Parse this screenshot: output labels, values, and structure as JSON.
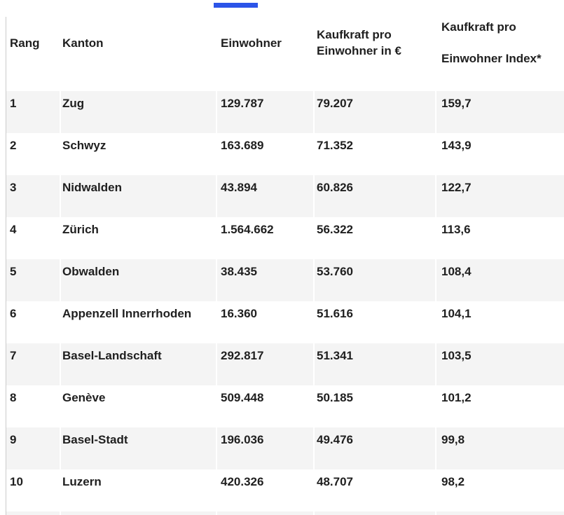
{
  "indicator": {
    "color": "#2c54e8"
  },
  "table": {
    "columns": [
      {
        "label": "Rang"
      },
      {
        "label": "Kanton"
      },
      {
        "label": "Einwohner"
      },
      {
        "label_line1": "Kaufkraft pro",
        "label_line2": "Einwohner in €"
      },
      {
        "label_line1": "Kaufkraft pro",
        "label_line2": "Einwohner Index*"
      }
    ],
    "rows": [
      [
        "1",
        "Zug",
        "129.787",
        "79.207",
        "159,7"
      ],
      [
        "2",
        "Schwyz",
        "163.689",
        "71.352",
        "143,9"
      ],
      [
        "3",
        "Nidwalden",
        "43.894",
        "60.826",
        "122,7"
      ],
      [
        "4",
        "Zürich",
        "1.564.662",
        "56.322",
        "113,6"
      ],
      [
        "5",
        "Obwalden",
        "38.435",
        "53.760",
        "108,4"
      ],
      [
        "6",
        "Appenzell Innerrhoden",
        "16.360",
        "51.616",
        "104,1"
      ],
      [
        "7",
        "Basel-Landschaft",
        "292.817",
        "51.341",
        "103,5"
      ],
      [
        "8",
        "Genève",
        "509.448",
        "50.185",
        "101,2"
      ],
      [
        "9",
        "Basel-Stadt",
        "196.036",
        "49.476",
        "99,8"
      ],
      [
        "10",
        "Luzern",
        "420.326",
        "48.707",
        "98,2"
      ]
    ]
  },
  "chart_data": {
    "type": "table",
    "columns": [
      "Rang",
      "Kanton",
      "Einwohner",
      "Kaufkraft pro Einwohner in €",
      "Kaufkraft pro Einwohner Index*"
    ],
    "rows": [
      {
        "rang": 1,
        "kanton": "Zug",
        "einwohner": 129787,
        "kaufkraft_pro_einwohner_eur": 79207,
        "kaufkraft_index": 159.7
      },
      {
        "rang": 2,
        "kanton": "Schwyz",
        "einwohner": 163689,
        "kaufkraft_pro_einwohner_eur": 71352,
        "kaufkraft_index": 143.9
      },
      {
        "rang": 3,
        "kanton": "Nidwalden",
        "einwohner": 43894,
        "kaufkraft_pro_einwohner_eur": 60826,
        "kaufkraft_index": 122.7
      },
      {
        "rang": 4,
        "kanton": "Zürich",
        "einwohner": 1564662,
        "kaufkraft_pro_einwohner_eur": 56322,
        "kaufkraft_index": 113.6
      },
      {
        "rang": 5,
        "kanton": "Obwalden",
        "einwohner": 38435,
        "kaufkraft_pro_einwohner_eur": 53760,
        "kaufkraft_index": 108.4
      },
      {
        "rang": 6,
        "kanton": "Appenzell Innerrhoden",
        "einwohner": 16360,
        "kaufkraft_pro_einwohner_eur": 51616,
        "kaufkraft_index": 104.1
      },
      {
        "rang": 7,
        "kanton": "Basel-Landschaft",
        "einwohner": 292817,
        "kaufkraft_pro_einwohner_eur": 51341,
        "kaufkraft_index": 103.5
      },
      {
        "rang": 8,
        "kanton": "Genève",
        "einwohner": 509448,
        "kaufkraft_pro_einwohner_eur": 50185,
        "kaufkraft_index": 101.2
      },
      {
        "rang": 9,
        "kanton": "Basel-Stadt",
        "einwohner": 196036,
        "kaufkraft_pro_einwohner_eur": 49476,
        "kaufkraft_index": 99.8
      },
      {
        "rang": 10,
        "kanton": "Luzern",
        "einwohner": 420326,
        "kaufkraft_pro_einwohner_eur": 48707,
        "kaufkraft_index": 98.2
      }
    ]
  }
}
